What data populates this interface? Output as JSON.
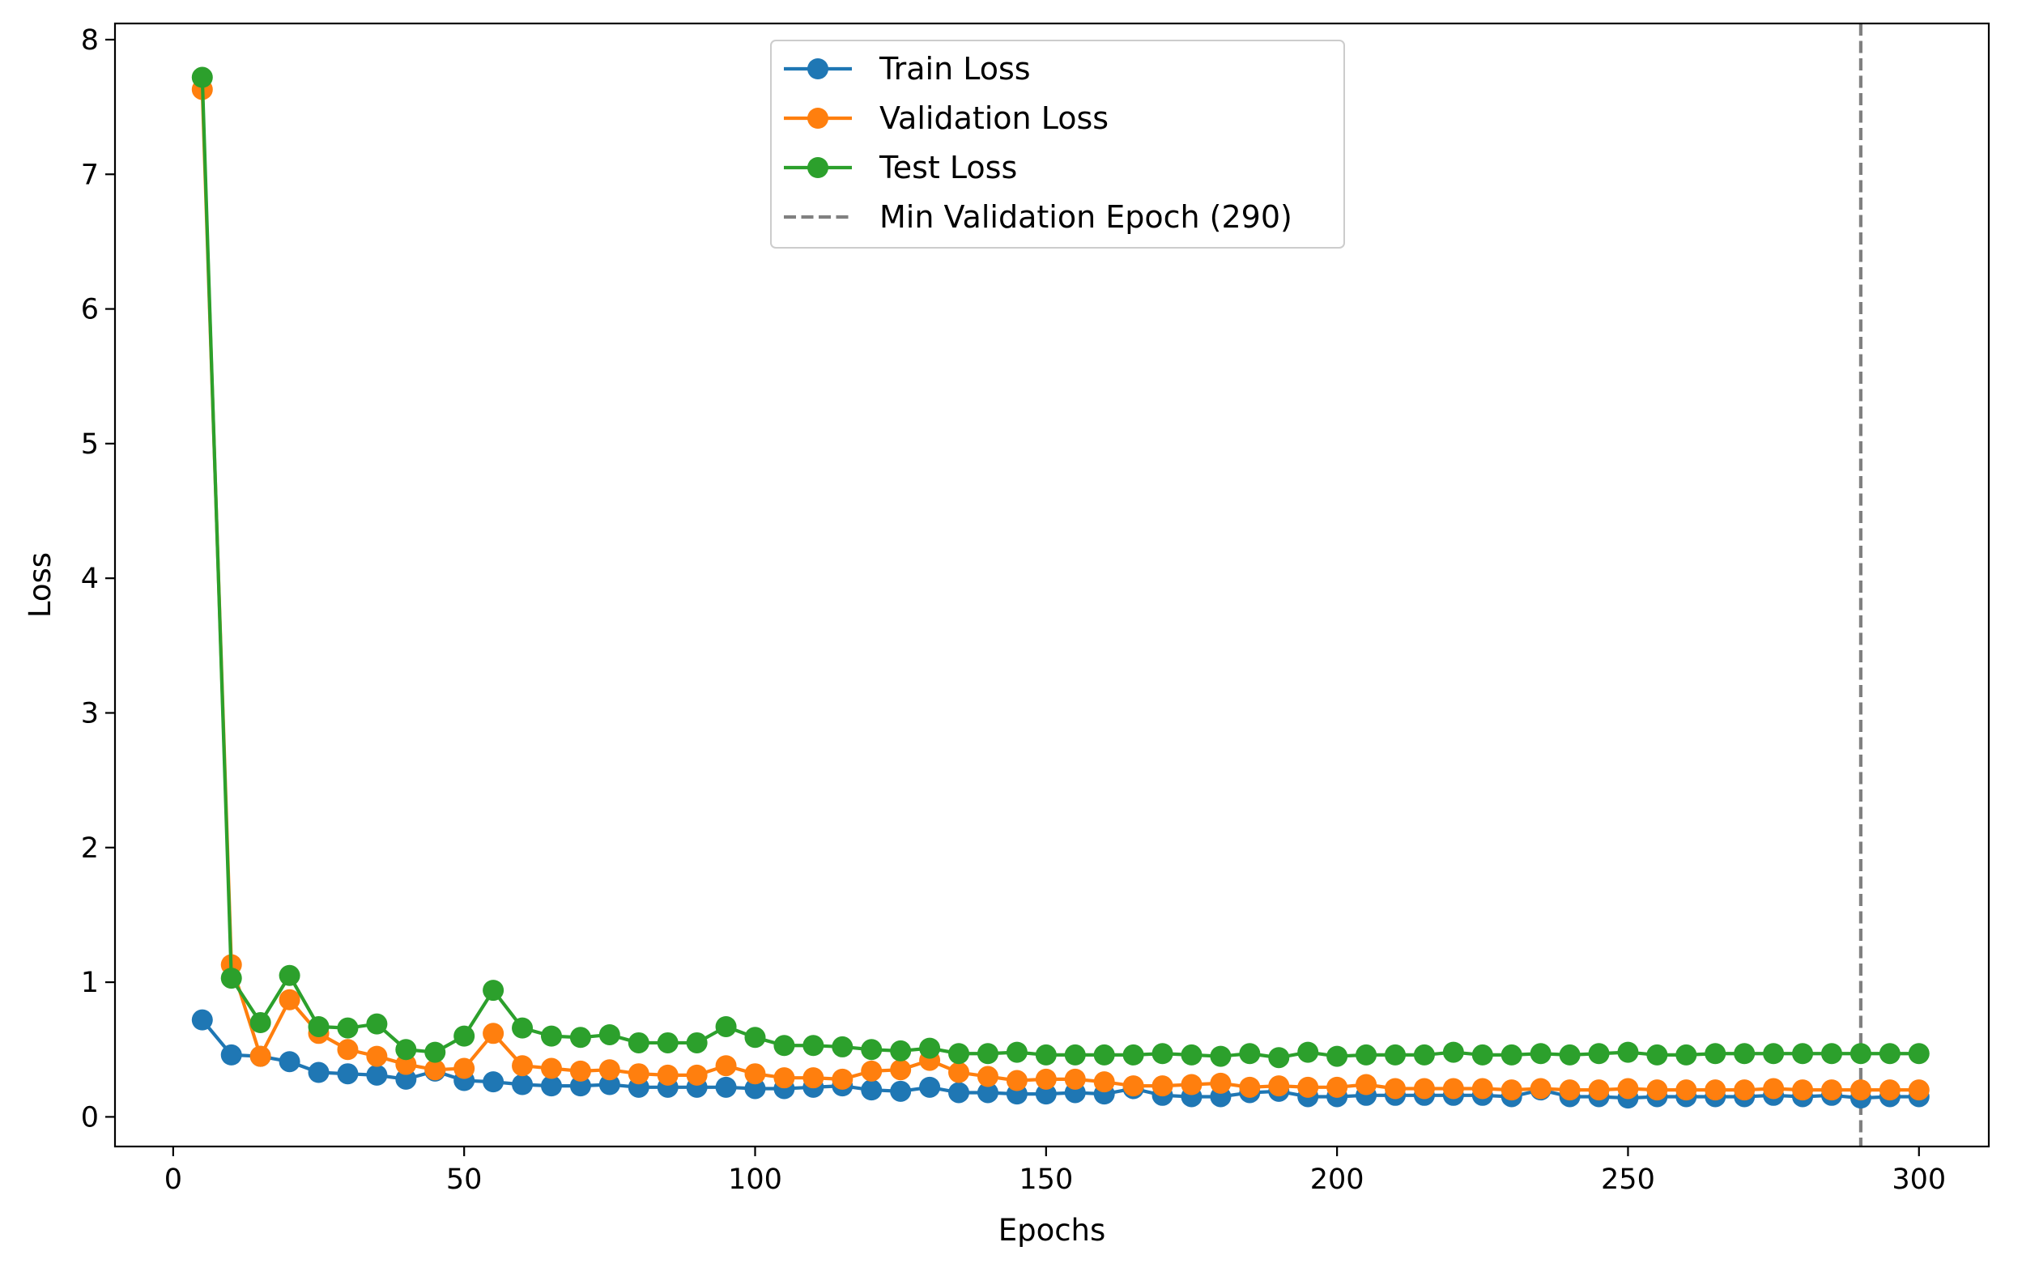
{
  "chart_data": {
    "type": "line",
    "xlabel": "Epochs",
    "ylabel": "Loss",
    "xlim": [
      -10,
      312
    ],
    "ylim": [
      -0.22,
      8.12
    ],
    "xticks": [
      0,
      50,
      100,
      150,
      200,
      250,
      300
    ],
    "yticks": [
      0,
      1,
      2,
      3,
      4,
      5,
      6,
      7,
      8
    ],
    "legend_position": "upper center",
    "grid": false,
    "x": [
      5,
      10,
      15,
      20,
      25,
      30,
      35,
      40,
      45,
      50,
      55,
      60,
      65,
      70,
      75,
      80,
      85,
      90,
      95,
      100,
      105,
      110,
      115,
      120,
      125,
      130,
      135,
      140,
      145,
      150,
      155,
      160,
      165,
      170,
      175,
      180,
      185,
      190,
      195,
      200,
      205,
      210,
      215,
      220,
      225,
      230,
      235,
      240,
      245,
      250,
      255,
      260,
      265,
      270,
      275,
      280,
      285,
      290,
      295,
      300
    ],
    "series": [
      {
        "name": "Train Loss",
        "color": "#1f77b4",
        "marker": "circle",
        "values": [
          0.72,
          0.46,
          0.45,
          0.41,
          0.33,
          0.32,
          0.31,
          0.28,
          0.34,
          0.27,
          0.26,
          0.24,
          0.23,
          0.23,
          0.24,
          0.22,
          0.22,
          0.22,
          0.22,
          0.21,
          0.21,
          0.22,
          0.23,
          0.2,
          0.19,
          0.22,
          0.18,
          0.18,
          0.17,
          0.17,
          0.18,
          0.17,
          0.21,
          0.16,
          0.15,
          0.15,
          0.18,
          0.19,
          0.15,
          0.15,
          0.16,
          0.16,
          0.16,
          0.16,
          0.16,
          0.15,
          0.2,
          0.15,
          0.15,
          0.14,
          0.15,
          0.15,
          0.15,
          0.15,
          0.16,
          0.15,
          0.16,
          0.14,
          0.15,
          0.15
        ]
      },
      {
        "name": "Validation Loss",
        "color": "#ff7f0e",
        "marker": "circle",
        "values": [
          7.63,
          1.13,
          0.45,
          0.87,
          0.62,
          0.5,
          0.45,
          0.39,
          0.35,
          0.36,
          0.62,
          0.38,
          0.36,
          0.34,
          0.35,
          0.32,
          0.31,
          0.31,
          0.38,
          0.32,
          0.29,
          0.29,
          0.28,
          0.34,
          0.35,
          0.42,
          0.33,
          0.3,
          0.27,
          0.28,
          0.28,
          0.26,
          0.23,
          0.23,
          0.24,
          0.25,
          0.22,
          0.23,
          0.22,
          0.22,
          0.24,
          0.21,
          0.21,
          0.21,
          0.21,
          0.2,
          0.21,
          0.2,
          0.2,
          0.21,
          0.2,
          0.2,
          0.2,
          0.2,
          0.21,
          0.2,
          0.2,
          0.2,
          0.2,
          0.2
        ]
      },
      {
        "name": "Test Loss",
        "color": "#2ca02c",
        "marker": "circle",
        "values": [
          7.72,
          1.03,
          0.7,
          1.05,
          0.67,
          0.66,
          0.69,
          0.5,
          0.48,
          0.6,
          0.94,
          0.66,
          0.6,
          0.59,
          0.61,
          0.55,
          0.55,
          0.55,
          0.67,
          0.59,
          0.53,
          0.53,
          0.52,
          0.5,
          0.49,
          0.51,
          0.47,
          0.47,
          0.48,
          0.46,
          0.46,
          0.46,
          0.46,
          0.47,
          0.46,
          0.45,
          0.47,
          0.44,
          0.48,
          0.45,
          0.46,
          0.46,
          0.46,
          0.48,
          0.46,
          0.46,
          0.47,
          0.46,
          0.47,
          0.48,
          0.46,
          0.46,
          0.47,
          0.47,
          0.47,
          0.47,
          0.47,
          0.47,
          0.47,
          0.47
        ]
      }
    ],
    "vline": {
      "name": "Min Validation Epoch (290)",
      "x": 290,
      "color": "#808080",
      "style": "dashed"
    }
  }
}
